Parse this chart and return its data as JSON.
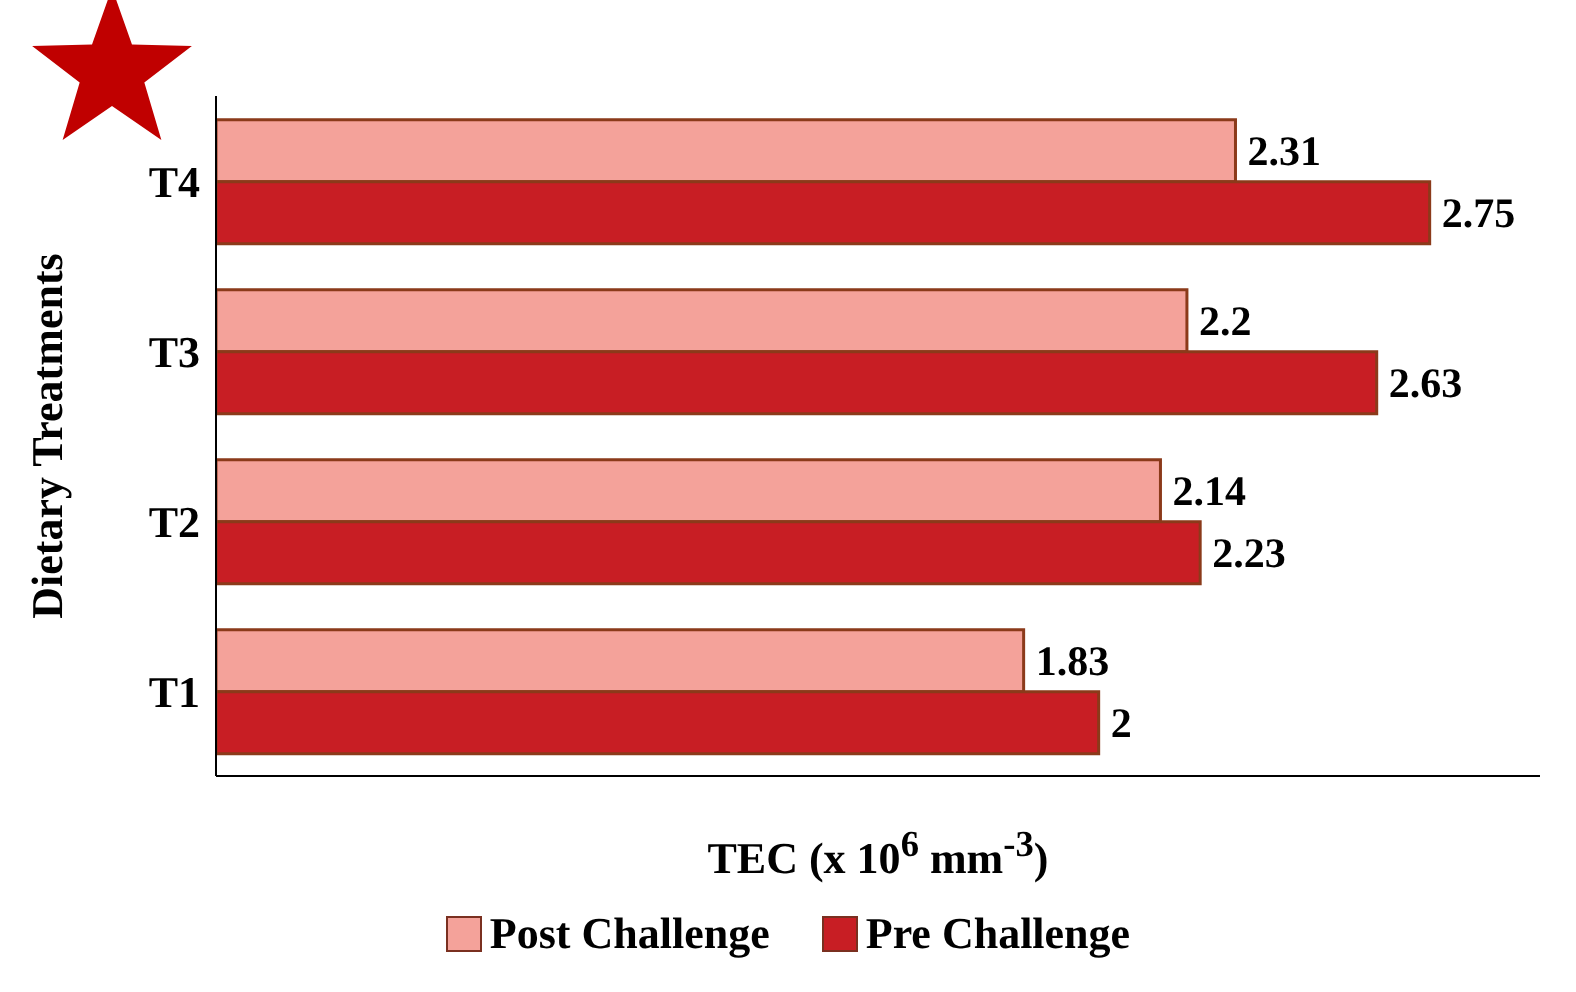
{
  "chart_data": {
    "type": "bar",
    "orientation": "horizontal",
    "categories": [
      "T4",
      "T3",
      "T2",
      "T1"
    ],
    "series": [
      {
        "name": "Post Challenge",
        "color": "#f4a29a",
        "values": [
          2.31,
          2.2,
          2.14,
          1.83
        ]
      },
      {
        "name": "Pre Challenge",
        "color": "#c81e24",
        "values": [
          2.75,
          2.63,
          2.23,
          2
        ]
      }
    ],
    "xlim": [
      0,
      3
    ],
    "xlabel": "TEC (x 10$^{6}$ mm$^{-3}$)",
    "ylabel": "Dietary Treatments",
    "data_labels": true,
    "tick_labels": "y",
    "legend": "bottom"
  }
}
